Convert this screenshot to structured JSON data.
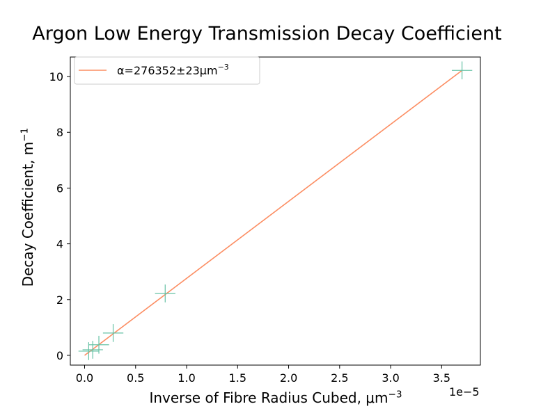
{
  "chart_data": {
    "type": "scatter",
    "title": "Argon Low Energy Transmission Decay Coefficient",
    "xlabel_text": "Inverse of Fibre Radius Cubed, μm",
    "xlabel_sup": "−3",
    "ylabel_text": "Decay Coefficient, m",
    "ylabel_sup": "−1",
    "x_offset_label": "1e−5",
    "x_ticks": [
      0.0,
      0.5,
      1.0,
      1.5,
      2.0,
      2.5,
      3.0,
      3.5
    ],
    "x_tick_labels": [
      "0.0",
      "0.5",
      "1.0",
      "1.5",
      "2.0",
      "2.5",
      "3.0",
      "3.5"
    ],
    "y_ticks": [
      0,
      2,
      4,
      6,
      8,
      10
    ],
    "y_tick_labels": [
      "0",
      "2",
      "4",
      "6",
      "8",
      "10"
    ],
    "xlim": [
      -0.14,
      3.88
    ],
    "ylim": [
      -0.35,
      10.7
    ],
    "x_scale_note": "x values in units of 1e-5",
    "legend_position": "upper left",
    "legend": {
      "label_text": "α=276352±23μm",
      "label_sup": "−3"
    },
    "series": [
      {
        "name": "α=276352±23μm−3",
        "kind": "line",
        "color": "#fc8d62",
        "x": [
          0.0,
          3.7
        ],
        "y": [
          0.0,
          10.22
        ]
      },
      {
        "kind": "errorbar",
        "color": "#66c2a5",
        "x": [
          0.04,
          0.08,
          0.14,
          0.28,
          0.79,
          3.7
        ],
        "y": [
          0.15,
          0.2,
          0.38,
          0.8,
          2.22,
          10.22
        ],
        "xerr": [
          0.1,
          0.1,
          0.1,
          0.1,
          0.1,
          0.1
        ],
        "yerr": [
          0.32,
          0.32,
          0.32,
          0.32,
          0.32,
          0.32
        ]
      }
    ]
  }
}
